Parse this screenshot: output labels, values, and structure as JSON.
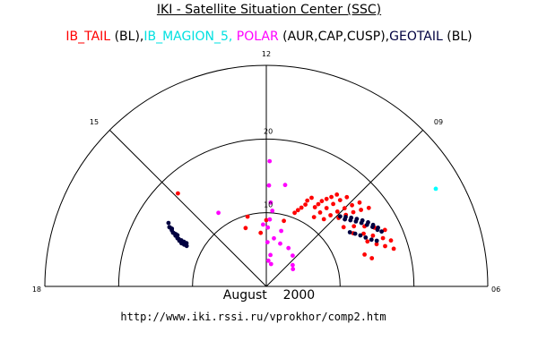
{
  "chart_data": {
    "type": "scatter",
    "coordinate_system": "polar-half-dial",
    "title": "IKI - Satellite Situation Center (SSC)",
    "legend": [
      {
        "name": "IB_TAIL",
        "note": "(BL)",
        "color": "#ff0000"
      },
      {
        "name": "IB_MAGION_5,",
        "note": "",
        "color": "#00ffff"
      },
      {
        "name": "POLAR",
        "note": "(AUR,CAP,CUSP),",
        "color": "#ff00ff"
      },
      {
        "name": "GEOTAIL",
        "note": "(BL)",
        "color": "#000040"
      }
    ],
    "hour_ticks": [
      "18",
      "15",
      "12",
      "09",
      "06"
    ],
    "radius_ticks": [
      "10",
      "20"
    ],
    "radius_range": [
      0,
      30
    ],
    "hour_range": [
      6,
      18
    ],
    "series": [
      {
        "name": "IB_TAIL",
        "color": "#ff0000",
        "points": [
          [
            14.9,
            17.4
          ],
          [
            13.0,
            9.8
          ],
          [
            13.3,
            8.4
          ],
          [
            12.0,
            9.0
          ],
          [
            12.4,
            7.3
          ],
          [
            11.0,
            9.2
          ],
          [
            10.6,
            10.7
          ],
          [
            10.5,
            11.2
          ],
          [
            10.4,
            11.7
          ],
          [
            10.3,
            12.3
          ],
          [
            10.3,
            12.9
          ],
          [
            10.2,
            13.5
          ],
          [
            9.9,
            12.6
          ],
          [
            9.85,
            13.2
          ],
          [
            9.8,
            13.8
          ],
          [
            9.7,
            14.4
          ],
          [
            9.6,
            15.0
          ],
          [
            9.5,
            15.7
          ],
          [
            9.7,
            11.4
          ],
          [
            9.6,
            12.4
          ],
          [
            9.5,
            13.4
          ],
          [
            9.4,
            14.4
          ],
          [
            9.3,
            15.4
          ],
          [
            9.2,
            16.3
          ],
          [
            9.3,
            12.0
          ],
          [
            9.2,
            13.0
          ],
          [
            9.1,
            14.0
          ],
          [
            9.0,
            15.0
          ],
          [
            8.9,
            16.0
          ],
          [
            8.8,
            17.0
          ],
          [
            8.9,
            13.5
          ],
          [
            8.8,
            14.5
          ],
          [
            8.7,
            15.5
          ],
          [
            8.6,
            16.5
          ],
          [
            8.5,
            17.5
          ],
          [
            8.5,
            13.2
          ],
          [
            8.3,
            14.4
          ],
          [
            8.1,
            15.6
          ],
          [
            7.9,
            16.7
          ],
          [
            7.7,
            17.8
          ],
          [
            8.1,
            13.8
          ],
          [
            7.9,
            15.0
          ],
          [
            7.7,
            16.0
          ],
          [
            7.5,
            17.1
          ],
          [
            7.35,
            18.0
          ],
          [
            7.6,
            15.0
          ],
          [
            7.4,
            16.0
          ],
          [
            7.25,
            17.0
          ],
          [
            7.1,
            18.0
          ],
          [
            7.2,
            14.0
          ],
          [
            7.0,
            14.8
          ]
        ]
      },
      {
        "name": "IB_MAGION_5",
        "color": "#00ffff",
        "points": [
          [
            8.0,
            26.5
          ]
        ]
      },
      {
        "name": "POLAR",
        "color": "#ff00ff",
        "points": [
          [
            11.9,
            17.0
          ],
          [
            11.9,
            13.7
          ],
          [
            11.8,
            11.4
          ],
          [
            12.2,
            8.4
          ],
          [
            11.9,
            8.0
          ],
          [
            11.7,
            10.3
          ],
          [
            11.8,
            9.1
          ],
          [
            11.9,
            6.0
          ],
          [
            11.4,
            6.6
          ],
          [
            11.0,
            7.8
          ],
          [
            10.8,
            6.1
          ],
          [
            11.5,
            4.3
          ],
          [
            11.7,
            3.5
          ],
          [
            11.2,
            3.1
          ],
          [
            10.0,
            6.0
          ],
          [
            9.3,
            5.5
          ],
          [
            8.6,
            4.6
          ],
          [
            8.2,
            4.3
          ],
          [
            11.3,
            14.0
          ],
          [
            14.2,
            11.9
          ]
        ]
      },
      {
        "name": "GEOTAIL",
        "color": "#000040",
        "points": [
          [
            16.1,
            12.3
          ],
          [
            16.1,
            12.7
          ],
          [
            16.1,
            13.1
          ],
          [
            16.1,
            13.5
          ],
          [
            16.0,
            13.9
          ],
          [
            16.0,
            14.2
          ],
          [
            16.0,
            14.6
          ],
          [
            15.9,
            15.0
          ],
          [
            15.9,
            15.4
          ],
          [
            15.8,
            15.8
          ],
          [
            16.2,
            12.5
          ],
          [
            16.2,
            12.9
          ],
          [
            16.15,
            13.3
          ],
          [
            16.1,
            13.7
          ],
          [
            16.05,
            14.1
          ],
          [
            16.0,
            14.5
          ],
          [
            15.95,
            14.9
          ],
          [
            15.9,
            15.3
          ],
          [
            16.2,
            12.1
          ],
          [
            8.9,
            13.8
          ],
          [
            8.75,
            14.3
          ],
          [
            8.6,
            14.8
          ],
          [
            8.45,
            15.3
          ],
          [
            8.3,
            15.8
          ],
          [
            8.15,
            16.3
          ],
          [
            8.0,
            16.7
          ],
          [
            7.85,
            17.1
          ],
          [
            8.7,
            14.0
          ],
          [
            8.55,
            14.5
          ],
          [
            8.4,
            15.0
          ],
          [
            8.25,
            15.5
          ],
          [
            8.1,
            16.0
          ],
          [
            7.95,
            16.5
          ],
          [
            7.8,
            16.9
          ],
          [
            7.7,
            17.3
          ],
          [
            8.2,
            13.5
          ],
          [
            8.05,
            14.0
          ],
          [
            7.9,
            14.5
          ],
          [
            7.75,
            15.0
          ],
          [
            7.6,
            15.6
          ],
          [
            7.5,
            16.2
          ]
        ]
      }
    ]
  },
  "footer": {
    "month": "August",
    "year": "2000",
    "url": "http://www.iki.rssi.ru/vprokhor/comp2.htm"
  }
}
